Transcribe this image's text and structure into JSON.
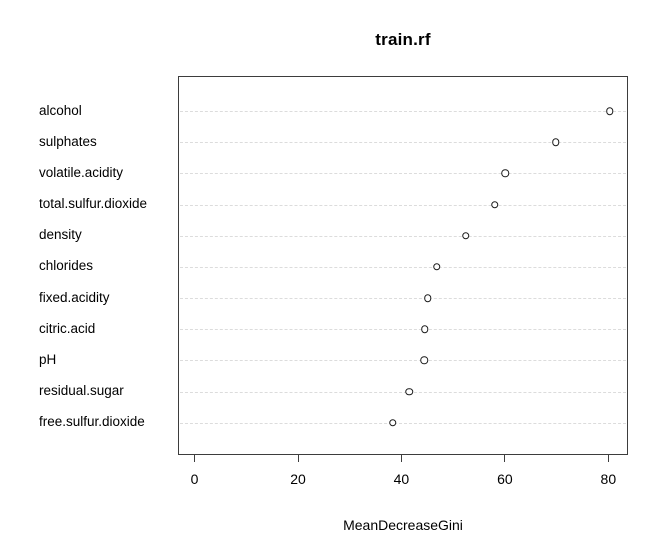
{
  "chart_data": {
    "type": "scatter",
    "variant": "dotchart-variable-importance",
    "title": "train.rf",
    "xlabel": "MeanDecreaseGini",
    "ylabel": "",
    "categories": [
      "alcohol",
      "sulphates",
      "volatile.acidity",
      "total.sulfur.dioxide",
      "density",
      "chlorides",
      "fixed.acidity",
      "citric.acid",
      "pH",
      "residual.sugar",
      "free.sulfur.dioxide"
    ],
    "values": [
      80.3,
      69.8,
      60.1,
      58.0,
      52.4,
      46.8,
      45.1,
      44.5,
      44.4,
      41.5,
      38.3
    ],
    "x_ticks": [
      0,
      20,
      40,
      60,
      80
    ],
    "xlim": [
      -3.2,
      83.8
    ],
    "grid": "horizontal dotted line per category",
    "legend_position": "none"
  },
  "colors": {
    "background": "#ffffff",
    "box_border": "#3d3d3d",
    "grid_line": "#dcdcdc",
    "point_outline": "#1c1c1c",
    "text": "#000000"
  }
}
